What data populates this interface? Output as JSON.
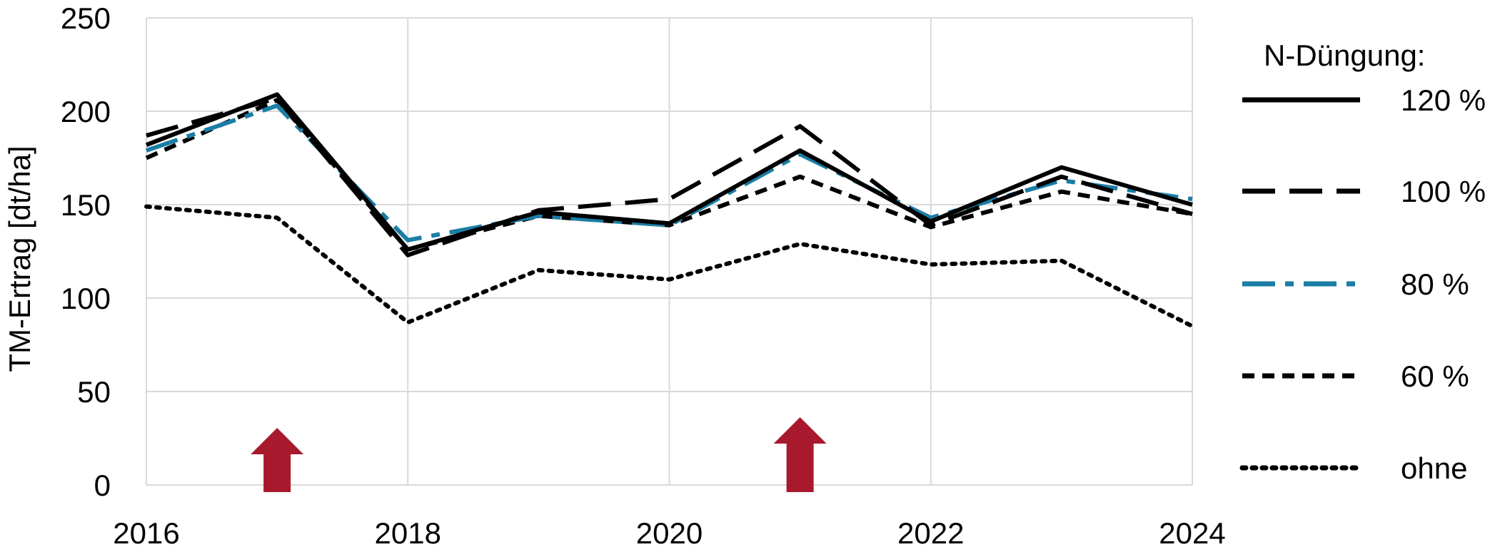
{
  "chart_data": {
    "type": "line",
    "ylabel": "TM-Ertrag [dt/ha]",
    "xlabel": "",
    "x_tick_labels": [
      "2016",
      "2018",
      "2020",
      "2022",
      "2024"
    ],
    "y_tick_labels": [
      "0",
      "50",
      "100",
      "150",
      "200",
      "250"
    ],
    "xlim": [
      2016,
      2024
    ],
    "ylim": [
      0,
      250
    ],
    "grid": true,
    "legend_title": "N-Düngung:",
    "legend_position": "right",
    "x": [
      2016,
      2017,
      2018,
      2019,
      2020,
      2021,
      2022,
      2023,
      2024
    ],
    "series": [
      {
        "name": "120 %",
        "style": "solid",
        "color": "#000000",
        "values": [
          182,
          209,
          126,
          146,
          140,
          179,
          141,
          170,
          150
        ]
      },
      {
        "name": "100 %",
        "style": "longdash",
        "color": "#000000",
        "values": [
          187,
          207,
          123,
          147,
          153,
          192,
          139,
          165,
          145
        ]
      },
      {
        "name": "80 %",
        "style": "dashdot",
        "color": "#1a7ea6",
        "values": [
          179,
          203,
          131,
          144,
          139,
          177,
          143,
          163,
          153
        ]
      },
      {
        "name": "60 %",
        "style": "shortdash",
        "color": "#000000",
        "values": [
          175,
          206,
          126,
          144,
          139,
          165,
          138,
          157,
          145
        ]
      },
      {
        "name": "ohne",
        "style": "dotted",
        "color": "#000000",
        "values": [
          149,
          143,
          87,
          115,
          110,
          129,
          118,
          120,
          85
        ]
      }
    ],
    "markers": [
      {
        "type": "arrow-up",
        "x": 2017,
        "color": "#a8192e"
      },
      {
        "type": "arrow-up",
        "x": 2021,
        "color": "#a8192e"
      }
    ]
  }
}
